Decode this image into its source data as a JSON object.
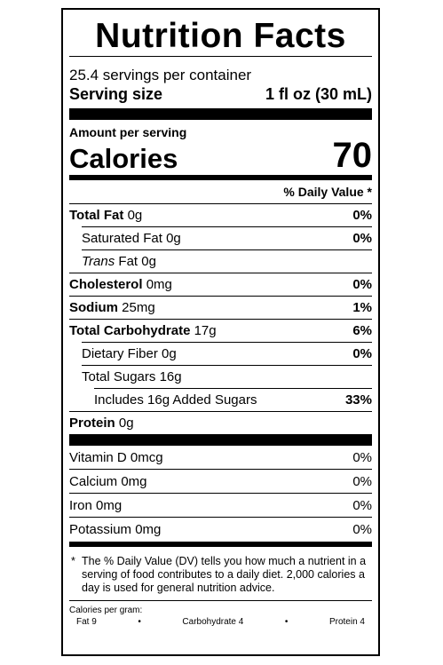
{
  "title": "Nutrition Facts",
  "servings_per_container": "25.4 servings per container",
  "serving_size_label": "Serving size",
  "serving_size_value": "1 fl oz (30 mL)",
  "amount_per_serving": "Amount per serving",
  "calories_label": "Calories",
  "calories_value": "70",
  "daily_value_header": "% Daily Value *",
  "nutrients": {
    "total_fat": {
      "label": "Total Fat",
      "amount": "0g",
      "dv": "0%"
    },
    "saturated_fat": {
      "label": "Saturated Fat",
      "amount": "0g",
      "dv": "0%"
    },
    "trans_fat": {
      "label_italic": "Trans",
      "label": "Fat",
      "amount": "0g"
    },
    "cholesterol": {
      "label": "Cholesterol",
      "amount": "0mg",
      "dv": "0%"
    },
    "sodium": {
      "label": "Sodium",
      "amount": "25mg",
      "dv": "1%"
    },
    "total_carbohydrate": {
      "label": "Total Carbohydrate",
      "amount": "17g",
      "dv": "6%"
    },
    "dietary_fiber": {
      "label": "Dietary Fiber",
      "amount": "0g",
      "dv": "0%"
    },
    "total_sugars": {
      "label": "Total Sugars",
      "amount": "16g"
    },
    "added_sugars": {
      "label": "Includes 16g Added Sugars",
      "dv": "33%"
    },
    "protein": {
      "label": "Protein",
      "amount": "0g"
    }
  },
  "vitamins": [
    {
      "label": "Vitamin D 0mcg",
      "dv": "0%"
    },
    {
      "label": "Calcium 0mg",
      "dv": "0%"
    },
    {
      "label": "Iron 0mg",
      "dv": "0%"
    },
    {
      "label": "Potassium 0mg",
      "dv": "0%"
    }
  ],
  "footnote": "The % Daily Value (DV) tells you how much a nutrient in a serving of food contributes to a daily diet. 2,000 calories a day is used for general nutrition advice.",
  "footnote_star": "*",
  "calories_per_gram": {
    "heading": "Calories per gram:",
    "fat": "Fat 9",
    "carbohydrate": "Carbohydrate 4",
    "protein": "Protein 4",
    "separator": "•"
  }
}
